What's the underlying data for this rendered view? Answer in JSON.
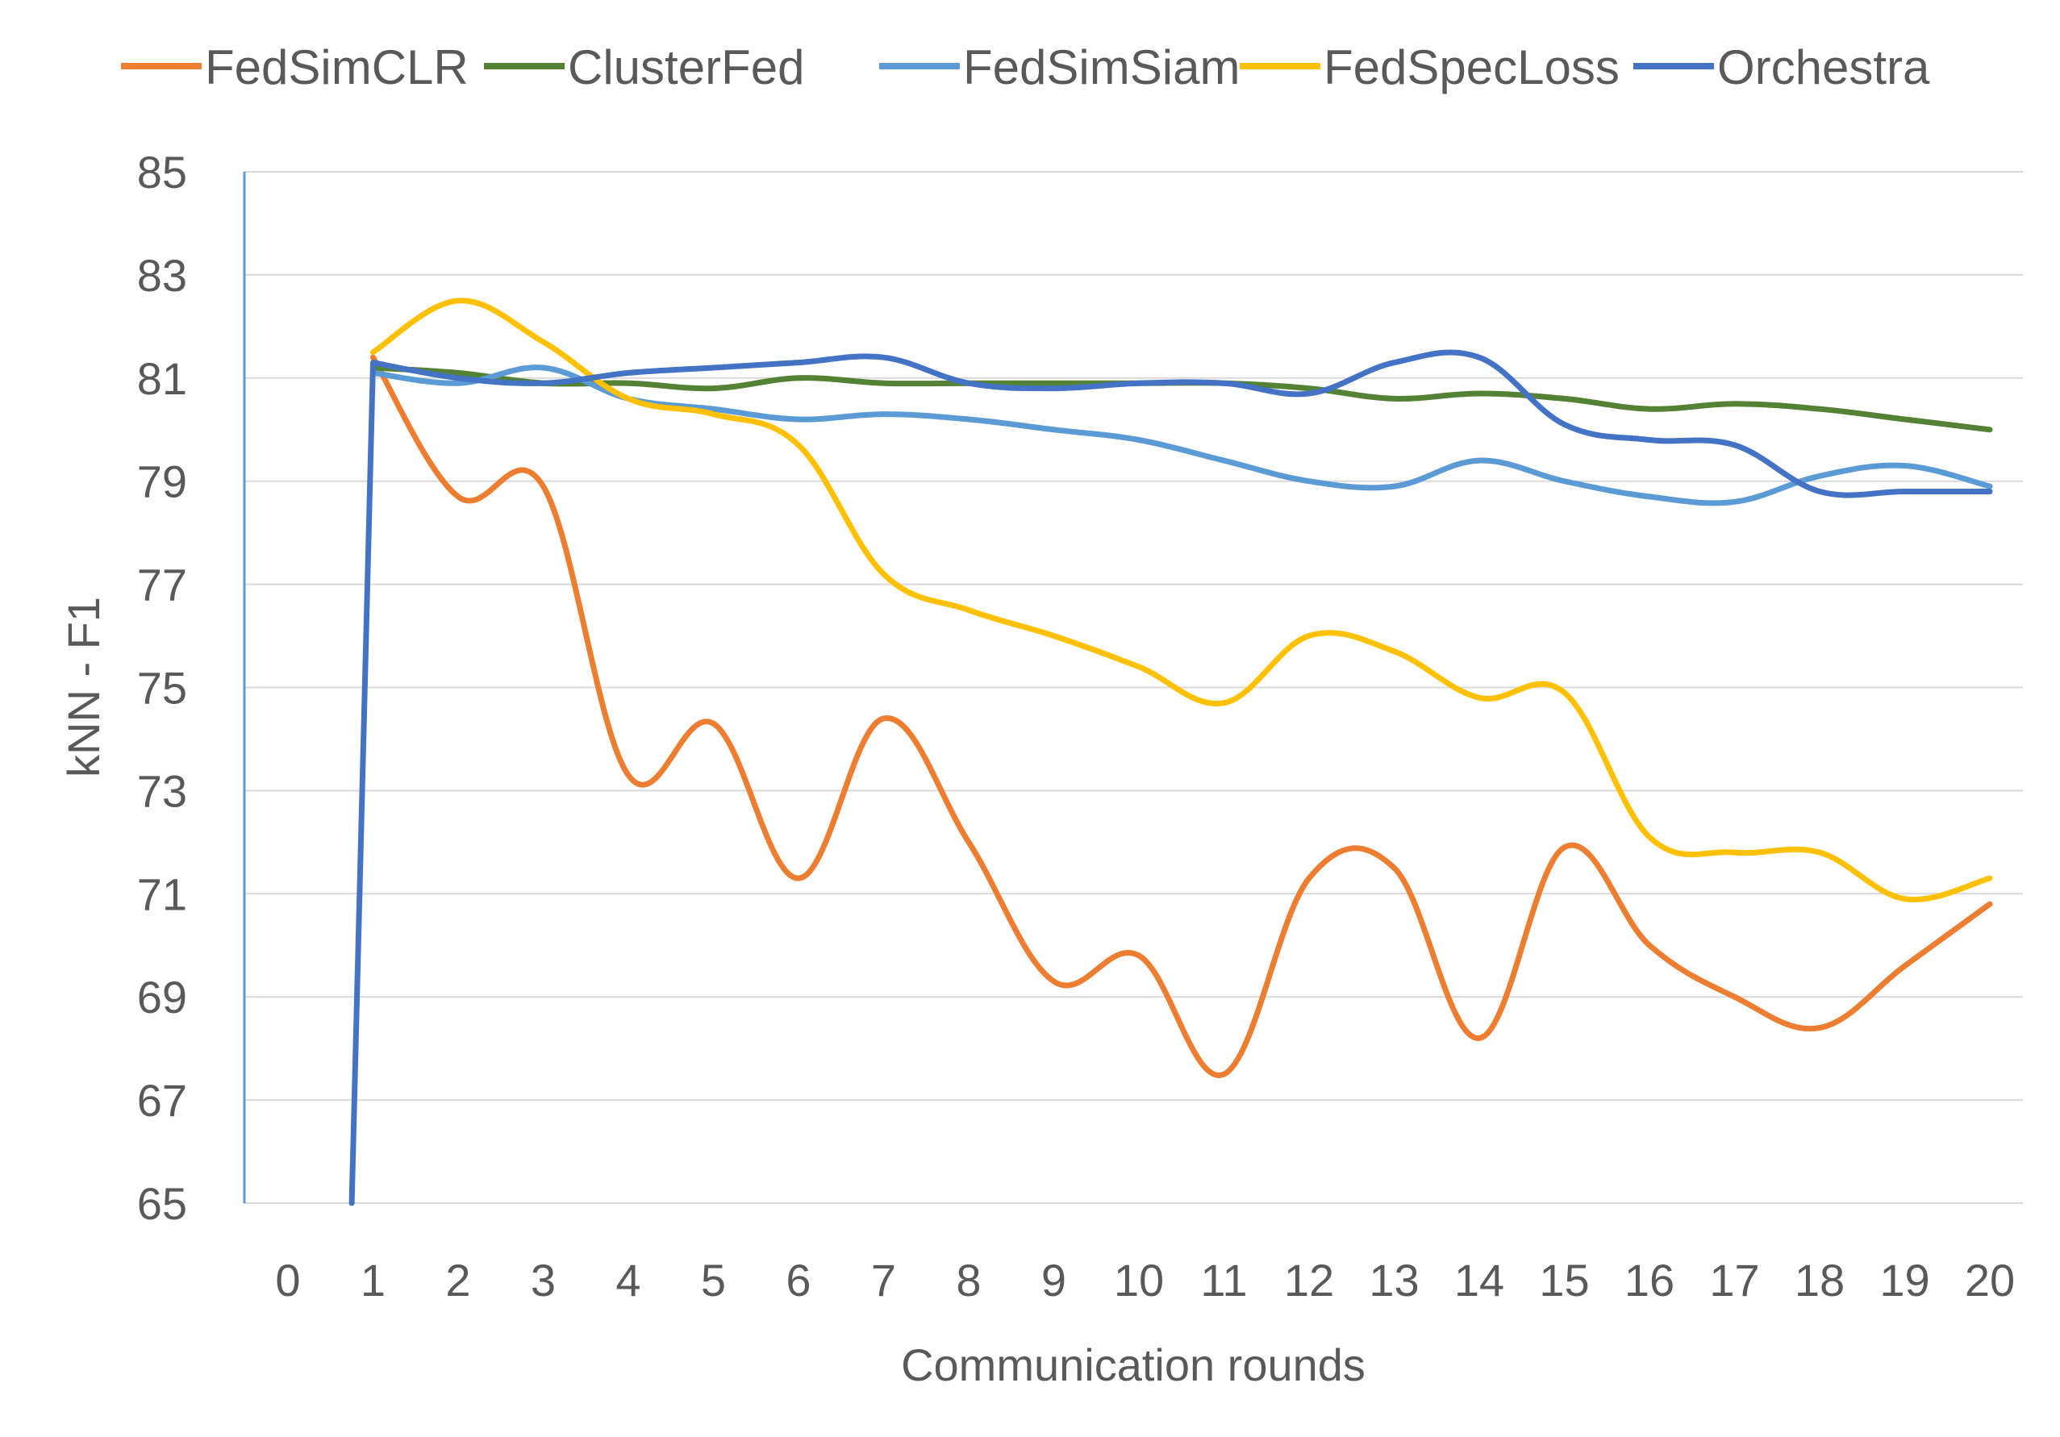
{
  "chart_data": {
    "type": "line",
    "title": "",
    "xlabel": "Communication rounds",
    "ylabel": "kNN - F1",
    "ylim": [
      65,
      85
    ],
    "yticks": [
      65,
      67,
      69,
      71,
      73,
      75,
      77,
      79,
      81,
      83,
      85
    ],
    "categories": [
      "0",
      "1",
      "2",
      "3",
      "4",
      "5",
      "6",
      "7",
      "8",
      "9",
      "10",
      "11",
      "12",
      "13",
      "14",
      "15",
      "16",
      "17",
      "18",
      "19",
      "20"
    ],
    "grid": true,
    "legend": "top",
    "series": [
      {
        "name": "FedSimCLR",
        "color": "#ed7d31",
        "x": [
          1,
          2,
          3,
          4,
          5,
          6,
          7,
          8,
          9,
          10,
          11,
          12,
          13,
          14,
          15,
          16,
          17,
          18,
          19,
          20
        ],
        "values": [
          81.4,
          78.7,
          78.9,
          73.3,
          74.3,
          71.3,
          74.4,
          72.0,
          69.3,
          69.8,
          67.5,
          71.3,
          71.5,
          68.2,
          71.9,
          70.0,
          69.0,
          68.4,
          69.6,
          70.8
        ]
      },
      {
        "name": "ClusterFed",
        "color": "#548235",
        "x": [
          1,
          2,
          3,
          4,
          5,
          6,
          7,
          8,
          9,
          10,
          11,
          12,
          13,
          14,
          15,
          16,
          17,
          18,
          19,
          20
        ],
        "values": [
          81.2,
          81.1,
          80.9,
          80.9,
          80.8,
          81.0,
          80.9,
          80.9,
          80.9,
          80.9,
          80.9,
          80.8,
          80.6,
          80.7,
          80.6,
          80.4,
          80.5,
          80.4,
          80.2,
          80.0
        ]
      },
      {
        "name": "FedSimSiam",
        "color": "#5b9bd5",
        "x": [
          1,
          2,
          3,
          4,
          5,
          6,
          7,
          8,
          9,
          10,
          11,
          12,
          13,
          14,
          15,
          16,
          17,
          18,
          19,
          20
        ],
        "values": [
          81.1,
          80.9,
          81.2,
          80.6,
          80.4,
          80.2,
          80.3,
          80.2,
          80.0,
          79.8,
          79.4,
          79.0,
          78.9,
          79.4,
          79.0,
          78.7,
          78.6,
          79.1,
          79.3,
          78.9
        ]
      },
      {
        "name": "FedSpecLoss",
        "color": "#ffc000",
        "x": [
          1,
          2,
          3,
          4,
          5,
          6,
          7,
          8,
          9,
          10,
          11,
          12,
          13,
          14,
          15,
          16,
          17,
          18,
          19,
          20
        ],
        "values": [
          81.5,
          82.5,
          81.7,
          80.6,
          80.3,
          79.7,
          77.2,
          76.5,
          76.0,
          75.4,
          74.7,
          76.0,
          75.7,
          74.8,
          74.9,
          72.1,
          71.8,
          71.8,
          70.9,
          71.3
        ]
      },
      {
        "name": "Orchestra",
        "color": "#4472c4",
        "x": [
          0.75,
          1,
          2,
          3,
          4,
          5,
          6,
          7,
          8,
          9,
          10,
          11,
          12,
          13,
          14,
          15,
          16,
          17,
          18,
          19,
          20
        ],
        "values": [
          65,
          81.3,
          81.0,
          80.9,
          81.1,
          81.2,
          81.3,
          81.4,
          80.9,
          80.8,
          80.9,
          80.9,
          80.7,
          81.3,
          81.4,
          80.1,
          79.8,
          79.7,
          78.8,
          78.8,
          78.8
        ]
      }
    ]
  }
}
